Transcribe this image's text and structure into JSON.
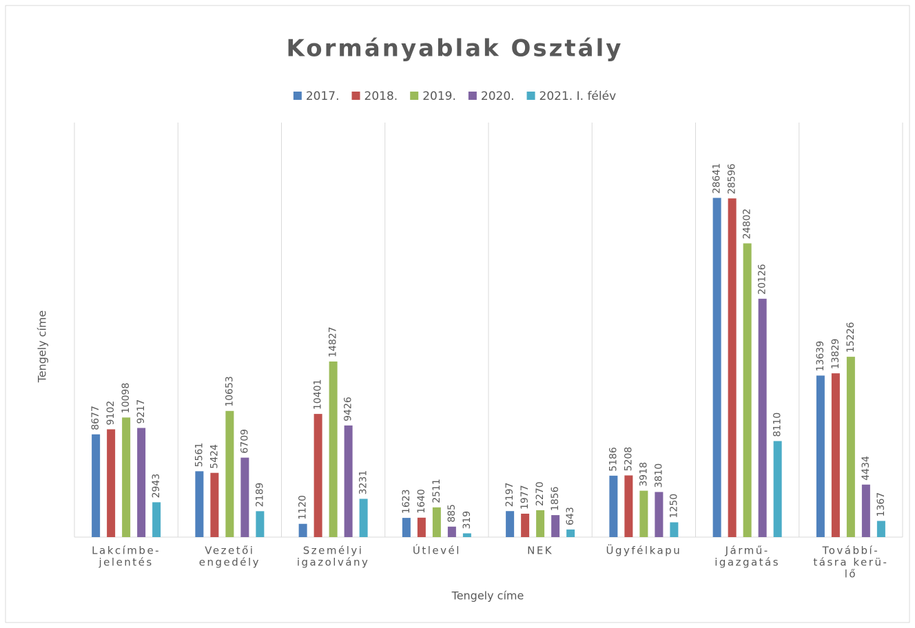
{
  "chart_data": {
    "type": "bar",
    "title": "Kormányablak Osztály",
    "x_label": "Tengely címe",
    "y_label": "Tengely címe",
    "categories": [
      [
        "Lakcímbe-",
        "jelentés"
      ],
      [
        "Vezetői",
        "engedély"
      ],
      [
        "Személyi",
        "igazolvány"
      ],
      [
        "Útlevél"
      ],
      [
        "NEK"
      ],
      [
        "Ügyfélkapu"
      ],
      [
        "Jármű-",
        "igazgatás"
      ],
      [
        "Továbbí-",
        "tásra kerü-",
        "lő"
      ]
    ],
    "series": [
      {
        "name": "2017.",
        "color": "#4f81bd",
        "values": [
          8677,
          5561,
          1120,
          1623,
          2197,
          5186,
          28641,
          13639
        ]
      },
      {
        "name": "2018.",
        "color": "#c0504d",
        "values": [
          9102,
          5424,
          10401,
          1640,
          1977,
          5208,
          28596,
          13829
        ]
      },
      {
        "name": "2019.",
        "color": "#9bbb59",
        "values": [
          10098,
          10653,
          14827,
          2511,
          2270,
          3918,
          24802,
          15226
        ]
      },
      {
        "name": "2020.",
        "color": "#8064a2",
        "values": [
          9217,
          6709,
          9426,
          885,
          1856,
          3810,
          20126,
          4434
        ]
      },
      {
        "name": "2021. I. félév",
        "color": "#4bacc6",
        "values": [
          2943,
          2189,
          3231,
          319,
          643,
          1250,
          8110,
          1367
        ]
      }
    ],
    "ylim": [
      0,
      35000
    ],
    "legend": "top"
  }
}
